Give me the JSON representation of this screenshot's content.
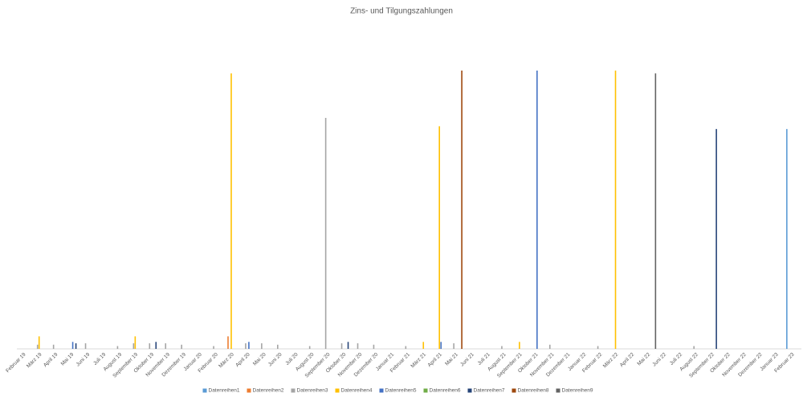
{
  "chart_data": {
    "type": "bar",
    "title": "Zins- und Tilgungszahlungen",
    "categories": [
      "Februar 19",
      "März 19",
      "April 19",
      "Mai 19",
      "Juni 19",
      "Juli 19",
      "August 19",
      "September 19",
      "Oktober 19",
      "November 19",
      "Dezember 19",
      "Januar 20",
      "Februar 20",
      "März 20",
      "April 20",
      "Mai 20",
      "Juni 20",
      "Juli 20",
      "August 20",
      "September 20",
      "Oktober 20",
      "November 20",
      "Dezember 20",
      "Januar 21",
      "Februar 21",
      "März 21",
      "April 21",
      "Mai 21",
      "Juni 21",
      "Juli 21",
      "August 21",
      "September 21",
      "Oktober 21",
      "November 21",
      "Dezember 21",
      "Januar 22",
      "Februar 22",
      "März 22",
      "April 22",
      "Mai 22",
      "Juni 22",
      "Juli 22",
      "August 22",
      "September 22",
      "Oktober 22",
      "November 22",
      "Dezember 22",
      "Januar 23",
      "Februar 23"
    ],
    "ylim": [
      0,
      100
    ],
    "legend": "bottom",
    "series": [
      {
        "name": "Datenreihen1",
        "color": "#5b9bd5",
        "values": [
          null,
          null,
          null,
          null,
          null,
          null,
          null,
          null,
          null,
          null,
          null,
          null,
          null,
          null,
          null,
          null,
          null,
          null,
          null,
          null,
          null,
          null,
          null,
          null,
          null,
          null,
          null,
          null,
          null,
          null,
          null,
          null,
          null,
          null,
          null,
          null,
          null,
          null,
          null,
          null,
          null,
          null,
          null,
          null,
          null,
          null,
          null,
          null,
          79
        ]
      },
      {
        "name": "Datenreihen2",
        "color": "#ed7d31",
        "values": [
          null,
          null,
          null,
          null,
          null,
          null,
          null,
          null,
          null,
          null,
          null,
          null,
          null,
          4.5,
          null,
          null,
          null,
          null,
          null,
          null,
          null,
          null,
          null,
          null,
          null,
          null,
          null,
          null,
          null,
          null,
          null,
          null,
          null,
          null,
          null,
          null,
          null,
          null,
          null,
          null,
          null,
          null,
          null,
          null,
          null,
          null,
          null,
          null,
          null
        ]
      },
      {
        "name": "Datenreihen3",
        "color": "#a5a5a5",
        "values": [
          null,
          1.5,
          1.5,
          null,
          2,
          null,
          1,
          2,
          2,
          2,
          1.5,
          null,
          1,
          null,
          2,
          2,
          1.5,
          null,
          1,
          83,
          2,
          2,
          1.5,
          null,
          1,
          null,
          null,
          2,
          null,
          null,
          1,
          null,
          null,
          1.5,
          null,
          null,
          1,
          null,
          null,
          null,
          null,
          null,
          1,
          null,
          null,
          null,
          null,
          null,
          null
        ]
      },
      {
        "name": "Datenreihen4",
        "color": "#ffc000",
        "values": [
          null,
          4.5,
          null,
          null,
          null,
          null,
          null,
          4.5,
          null,
          null,
          null,
          null,
          null,
          99,
          null,
          null,
          null,
          null,
          null,
          null,
          null,
          null,
          null,
          null,
          null,
          2.5,
          80,
          null,
          null,
          null,
          null,
          2.5,
          null,
          null,
          null,
          null,
          null,
          100,
          null,
          null,
          null,
          null,
          null,
          null,
          null,
          null,
          null,
          null,
          null
        ]
      },
      {
        "name": "Datenreihen5",
        "color": "#4472c4",
        "values": [
          null,
          null,
          null,
          2.5,
          null,
          null,
          null,
          null,
          null,
          null,
          null,
          null,
          null,
          null,
          2.5,
          null,
          null,
          null,
          null,
          null,
          null,
          null,
          null,
          null,
          null,
          null,
          2.5,
          null,
          null,
          null,
          null,
          null,
          100,
          null,
          null,
          null,
          null,
          null,
          null,
          null,
          null,
          null,
          null,
          null,
          null,
          null,
          null,
          null,
          null
        ]
      },
      {
        "name": "Datenreihen6",
        "color": "#70ad47",
        "values": [
          null,
          null,
          null,
          null,
          null,
          null,
          null,
          null,
          null,
          null,
          null,
          null,
          null,
          null,
          null,
          null,
          null,
          null,
          null,
          null,
          null,
          null,
          null,
          null,
          null,
          null,
          null,
          null,
          null,
          null,
          null,
          null,
          null,
          null,
          null,
          null,
          null,
          null,
          null,
          null,
          null,
          null,
          null,
          null,
          null,
          null,
          null,
          null,
          null
        ]
      },
      {
        "name": "Datenreihen7",
        "color": "#264478",
        "values": [
          null,
          null,
          null,
          2,
          null,
          null,
          null,
          null,
          2.5,
          null,
          null,
          null,
          null,
          null,
          null,
          null,
          null,
          null,
          null,
          null,
          2.5,
          null,
          null,
          null,
          null,
          null,
          null,
          null,
          null,
          null,
          null,
          null,
          null,
          null,
          null,
          null,
          null,
          null,
          null,
          null,
          null,
          null,
          null,
          79,
          null,
          null,
          null,
          null,
          null
        ]
      },
      {
        "name": "Datenreihen8",
        "color": "#9e480e",
        "values": [
          null,
          null,
          null,
          null,
          null,
          null,
          null,
          null,
          null,
          null,
          null,
          null,
          null,
          null,
          null,
          null,
          null,
          null,
          null,
          null,
          null,
          null,
          null,
          null,
          null,
          null,
          null,
          100,
          null,
          null,
          null,
          null,
          null,
          null,
          null,
          null,
          null,
          null,
          null,
          null,
          null,
          null,
          null,
          null,
          null,
          null,
          null,
          null,
          null
        ]
      },
      {
        "name": "Datenreihen9",
        "color": "#636363",
        "values": [
          null,
          null,
          null,
          null,
          null,
          null,
          null,
          null,
          null,
          null,
          null,
          null,
          null,
          null,
          null,
          null,
          null,
          null,
          null,
          null,
          null,
          null,
          null,
          null,
          null,
          null,
          null,
          null,
          null,
          null,
          null,
          null,
          null,
          null,
          null,
          null,
          null,
          null,
          null,
          99,
          null,
          null,
          null,
          null,
          null,
          null,
          null,
          null,
          null
        ]
      }
    ]
  }
}
